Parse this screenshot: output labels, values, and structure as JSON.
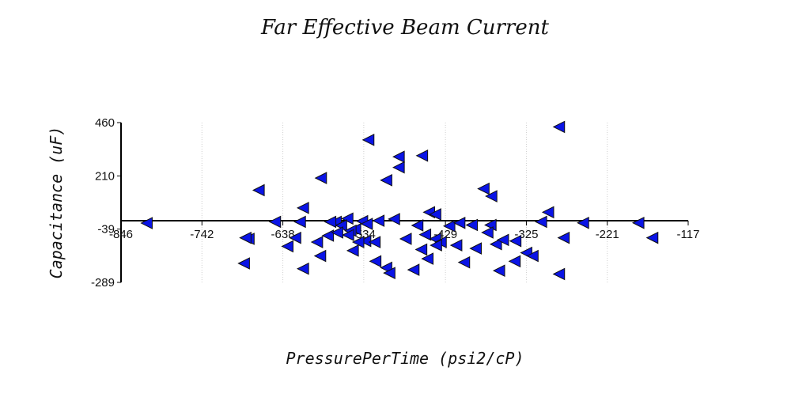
{
  "chart_data": {
    "type": "scatter",
    "title": "Far Effective Beam Current",
    "xlabel": "PressurePerTime (psi2/cP)",
    "ylabel": "Capacitance (uF)",
    "xlim": [
      -846,
      -117
    ],
    "ylim": [
      -289,
      460
    ],
    "x_ticks": [
      "-846",
      "-742",
      "-638",
      "-534",
      "-429",
      "-325",
      "-221",
      "-117"
    ],
    "y_ticks": [
      "460",
      "210",
      "-39",
      "-289"
    ],
    "marker": "triangle-left",
    "marker_color": "#0a14e6",
    "points": [
      [
        -813,
        -11
      ],
      [
        -669,
        143
      ],
      [
        -612,
        60
      ],
      [
        -528,
        379
      ],
      [
        -505,
        190
      ],
      [
        -489,
        300
      ],
      [
        -489,
        250
      ],
      [
        -459,
        305
      ],
      [
        -283,
        440
      ],
      [
        -589,
        200
      ],
      [
        -380,
        150
      ],
      [
        -370,
        115
      ],
      [
        -297,
        40
      ],
      [
        -648,
        -5
      ],
      [
        -616,
        -5
      ],
      [
        -570,
        -5
      ],
      [
        -555,
        10
      ],
      [
        -450,
        40
      ],
      [
        -442,
        30
      ],
      [
        -371,
        -20
      ],
      [
        -306,
        -5
      ],
      [
        -515,
        0
      ],
      [
        -536,
        -2
      ],
      [
        -495,
        8
      ],
      [
        -530,
        -15
      ],
      [
        -545,
        -40
      ],
      [
        -563,
        -22
      ],
      [
        -577,
        -5
      ],
      [
        -580,
        -70
      ],
      [
        -594,
        -100
      ],
      [
        -622,
        -80
      ],
      [
        -590,
        -165
      ],
      [
        -532,
        -95
      ],
      [
        -541,
        -100
      ],
      [
        -548,
        -140
      ],
      [
        -520,
        -100
      ],
      [
        -519,
        -190
      ],
      [
        -505,
        -220
      ],
      [
        -470,
        -230
      ],
      [
        -452,
        -178
      ],
      [
        -460,
        -135
      ],
      [
        -480,
        -85
      ],
      [
        -455,
        -65
      ],
      [
        -442,
        -85
      ],
      [
        -435,
        -100
      ],
      [
        -415,
        -115
      ],
      [
        -390,
        -130
      ],
      [
        -375,
        -55
      ],
      [
        -364,
        -110
      ],
      [
        -424,
        -25
      ],
      [
        -411,
        -10
      ],
      [
        -395,
        -20
      ],
      [
        -355,
        -90
      ],
      [
        -340,
        -190
      ],
      [
        -325,
        -150
      ],
      [
        -317,
        -165
      ],
      [
        -283,
        -250
      ],
      [
        -277,
        -80
      ],
      [
        -252,
        -10
      ],
      [
        -181,
        -10
      ],
      [
        -163,
        -80
      ],
      [
        -682,
        -85
      ],
      [
        -686,
        -80
      ],
      [
        -688,
        -200
      ],
      [
        -632,
        -120
      ],
      [
        -612,
        -225
      ],
      [
        -568,
        -55
      ],
      [
        -551,
        -47
      ],
      [
        -554,
        -67
      ],
      [
        -501,
        -245
      ],
      [
        -465,
        -22
      ],
      [
        -441,
        -115
      ],
      [
        -405,
        -195
      ],
      [
        -360,
        -234
      ],
      [
        -339,
        -95
      ]
    ]
  }
}
